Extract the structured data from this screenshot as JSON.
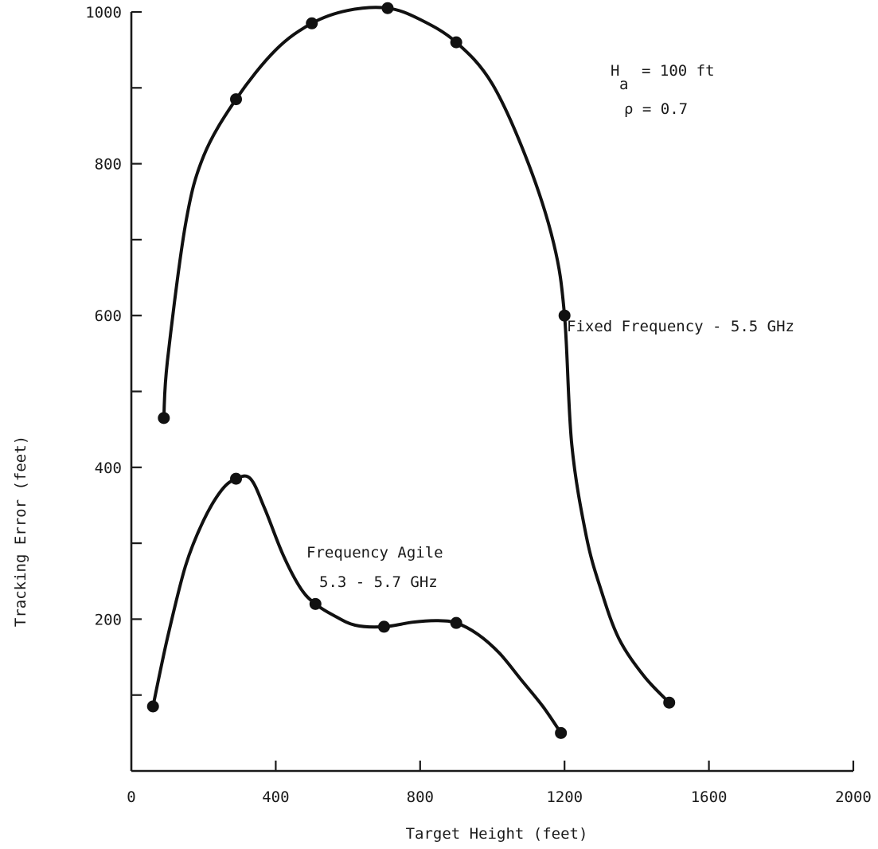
{
  "chart_data": {
    "type": "line",
    "xlabel": "Target Height (feet)",
    "ylabel": "Tracking Error (feet)",
    "xlim": [
      0,
      2000
    ],
    "ylim": [
      0,
      1000
    ],
    "x_ticks": [
      0,
      400,
      800,
      1200,
      1600,
      2000
    ],
    "y_ticks": [
      200,
      400,
      600,
      800,
      1000
    ],
    "grid": false,
    "annotations": {
      "ha_symbol": "H",
      "ha_sub": "a",
      "ha_value": "= 100 ft",
      "rho": "ρ = 0.7"
    },
    "series": [
      {
        "name": "Fixed Frequency - 5.5 GHz",
        "label_lines": [
          "Fixed Frequency - 5.5 GHz"
        ],
        "x": [
          90,
          290,
          500,
          710,
          900,
          1200,
          1490
        ],
        "y": [
          465,
          885,
          985,
          1005,
          960,
          600,
          90
        ],
        "curve_x": [
          90,
          100,
          150,
          200,
          290,
          400,
          500,
          600,
          710,
          800,
          900,
          1000,
          1100,
          1170,
          1200,
          1220,
          1260,
          1300,
          1350,
          1420,
          1490
        ],
        "curve_y": [
          465,
          540,
          720,
          810,
          885,
          950,
          985,
          1002,
          1005,
          990,
          960,
          905,
          800,
          695,
          600,
          430,
          310,
          240,
          175,
          125,
          90
        ]
      },
      {
        "name": "Frequency Agile 5.3 - 5.7 GHz",
        "label_lines": [
          "Frequency Agile",
          "5.3 - 5.7 GHz"
        ],
        "x": [
          60,
          290,
          510,
          700,
          900,
          1190
        ],
        "y": [
          85,
          385,
          220,
          190,
          195,
          50
        ],
        "curve_x": [
          60,
          100,
          150,
          200,
          250,
          290,
          330,
          370,
          420,
          470,
          510,
          560,
          620,
          700,
          780,
          850,
          900,
          960,
          1020,
          1080,
          1140,
          1190
        ],
        "curve_y": [
          85,
          175,
          270,
          330,
          370,
          385,
          385,
          345,
          285,
          240,
          220,
          205,
          192,
          190,
          196,
          198,
          195,
          180,
          155,
          120,
          85,
          50
        ]
      }
    ]
  }
}
